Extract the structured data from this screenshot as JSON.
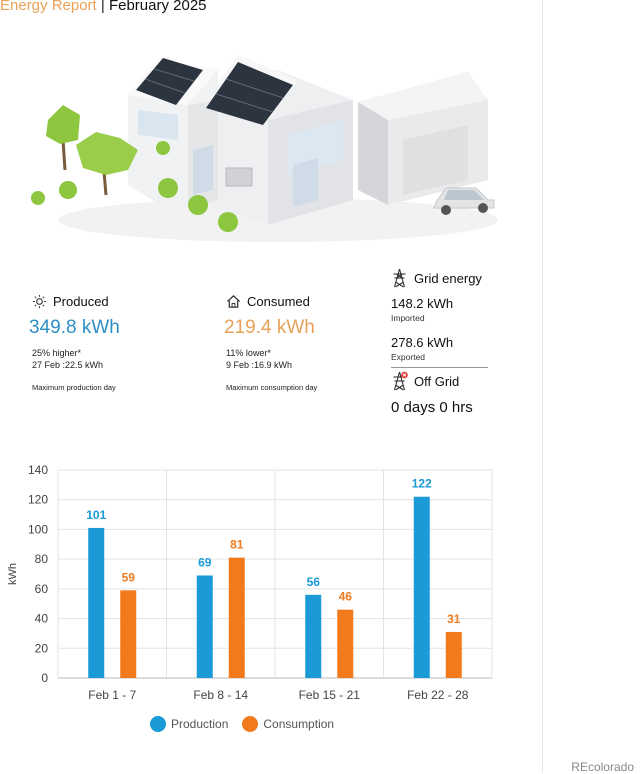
{
  "header": {
    "brand": "Energy Report",
    "separator": " | ",
    "month": "February 2025"
  },
  "produced": {
    "title": "Produced",
    "value": "349.8 kWh",
    "compare": "25% higher*",
    "detail": "27 Feb :22.5 kWh",
    "note": "Maximum production day",
    "icon": "sun-icon"
  },
  "consumed": {
    "title": "Consumed",
    "value": "219.4 kWh",
    "compare": "11% lower*",
    "detail": "9 Feb :16.9 kWh",
    "note": "Maximum consumption day",
    "icon": "house-icon"
  },
  "grid": {
    "title": "Grid energy",
    "imported_value": "148.2 kWh",
    "imported_label": "Imported",
    "exported_value": "278.6 kWh",
    "exported_label": "Exported",
    "icon": "power-tower-icon"
  },
  "offgrid": {
    "title": "Off Grid",
    "value": "0 days 0 hrs",
    "icon": "power-tower-off-icon"
  },
  "chart_data": {
    "type": "bar",
    "categories": [
      "Feb 1 - 7",
      "Feb 8 - 14",
      "Feb 15 - 21",
      "Feb 22 - 28"
    ],
    "series": [
      {
        "name": "Production",
        "values": [
          101,
          69,
          56,
          122
        ],
        "color": "#1a9ad6"
      },
      {
        "name": "Consumption",
        "values": [
          59,
          81,
          46,
          31
        ],
        "color": "#f07a1c"
      }
    ],
    "ylabel": "kWh",
    "ylim": [
      0,
      140
    ],
    "yticks": [
      0,
      20,
      40,
      60,
      80,
      100,
      120,
      140
    ],
    "grid": true,
    "legend": "bottom"
  },
  "watermark": "REcolorado"
}
